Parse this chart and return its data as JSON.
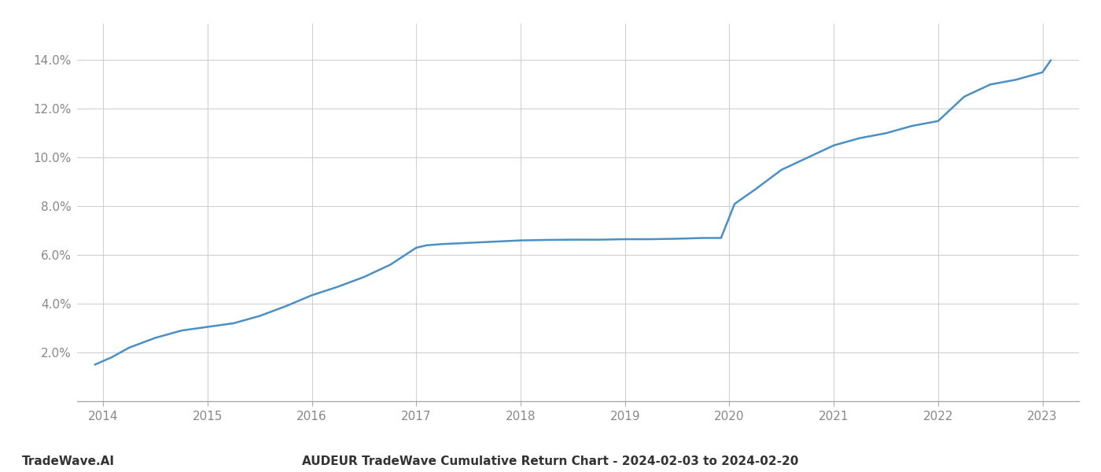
{
  "title": "AUDEUR TradeWave Cumulative Return Chart - 2024-02-03 to 2024-02-20",
  "watermark": "TradeWave.AI",
  "line_color": "#4a90c4",
  "background_color": "#ffffff",
  "grid_color": "#d0d0d0",
  "tick_color": "#888888",
  "x_years": [
    2014,
    2015,
    2016,
    2017,
    2018,
    2019,
    2020,
    2021,
    2022,
    2023
  ],
  "x_data": [
    2013.92,
    2014.08,
    2014.25,
    2014.5,
    2014.75,
    2015.0,
    2015.25,
    2015.5,
    2015.75,
    2016.0,
    2016.25,
    2016.5,
    2016.75,
    2017.0,
    2017.1,
    2017.25,
    2017.5,
    2017.75,
    2018.0,
    2018.25,
    2018.5,
    2018.75,
    2019.0,
    2019.25,
    2019.5,
    2019.75,
    2019.92,
    2020.05,
    2020.25,
    2020.5,
    2020.75,
    2021.0,
    2021.25,
    2021.5,
    2021.75,
    2022.0,
    2022.25,
    2022.5,
    2022.75,
    2023.0,
    2023.08
  ],
  "y_data": [
    1.5,
    1.8,
    2.2,
    2.6,
    2.9,
    3.05,
    3.2,
    3.5,
    3.9,
    4.35,
    4.7,
    5.1,
    5.6,
    6.3,
    6.4,
    6.45,
    6.5,
    6.55,
    6.6,
    6.62,
    6.63,
    6.63,
    6.65,
    6.65,
    6.67,
    6.7,
    6.7,
    8.1,
    8.7,
    9.5,
    10.0,
    10.5,
    10.8,
    11.0,
    11.3,
    11.5,
    12.5,
    13.0,
    13.2,
    13.5,
    14.0
  ],
  "ylim": [
    0,
    15.5
  ],
  "xlim": [
    2013.75,
    2023.35
  ],
  "yticks": [
    2.0,
    4.0,
    6.0,
    8.0,
    10.0,
    12.0,
    14.0
  ],
  "ytick_labels": [
    "2.0%",
    "4.0%",
    "6.0%",
    "8.0%",
    "10.0%",
    "12.0%",
    "14.0%"
  ],
  "line_width": 1.8,
  "title_fontsize": 11,
  "tick_fontsize": 11,
  "watermark_fontsize": 11
}
